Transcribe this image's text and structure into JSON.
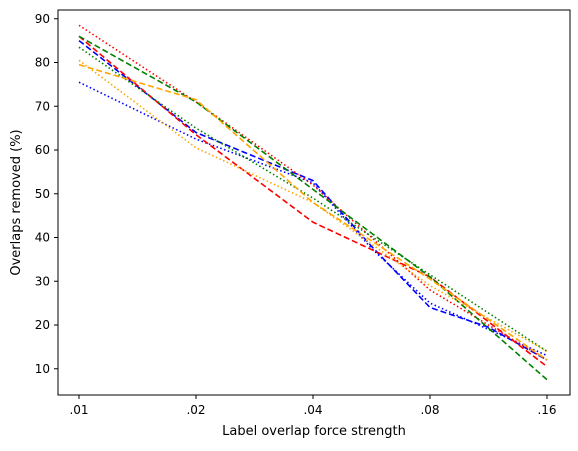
{
  "chart_data": {
    "type": "line",
    "title": "",
    "xlabel": "Label overlap force strength",
    "ylabel": "Overlaps removed (%)",
    "x_scale": "log2",
    "categories": [
      ".01",
      ".02",
      ".04",
      ".08",
      ".16"
    ],
    "ylim": [
      4,
      92
    ],
    "yticks": [
      10,
      20,
      30,
      40,
      50,
      60,
      70,
      80,
      90
    ],
    "grid": false,
    "legend": "none",
    "series": [
      {
        "color": "#0000ff",
        "dash": "dashed",
        "x": [
          0,
          1,
          2,
          2.5,
          3,
          3.5,
          4
        ],
        "values": [
          85.0,
          64.0,
          53.0,
          38.0,
          24.0,
          19.5,
          12.0
        ]
      },
      {
        "color": "#0000ff",
        "dash": "dotted",
        "x": [
          0,
          1,
          2,
          2.5,
          3,
          3.5,
          4
        ],
        "values": [
          75.5,
          62.5,
          52.5,
          37.5,
          25.0,
          19.0,
          13.0
        ]
      },
      {
        "color": "#ff0000",
        "dash": "dashed",
        "x": [
          0,
          1,
          2,
          3,
          4
        ],
        "values": [
          86.0,
          63.5,
          43.5,
          31.0,
          10.5
        ]
      },
      {
        "color": "#ff0000",
        "dash": "dotted",
        "x": [
          0,
          1,
          2,
          3,
          4
        ],
        "values": [
          88.5,
          71.0,
          52.0,
          28.0,
          12.0
        ]
      },
      {
        "color": "#008000",
        "dash": "dashed",
        "x": [
          0,
          1,
          2,
          3,
          4
        ],
        "values": [
          86.0,
          71.0,
          51.0,
          31.0,
          7.5
        ]
      },
      {
        "color": "#008000",
        "dash": "dotted",
        "x": [
          0,
          1,
          2,
          3,
          4
        ],
        "values": [
          83.5,
          65.0,
          49.0,
          31.5,
          14.0
        ]
      },
      {
        "color": "#ffa500",
        "dash": "dashed",
        "x": [
          0,
          1,
          2,
          3,
          4
        ],
        "values": [
          79.5,
          71.5,
          48.0,
          30.5,
          12.0
        ]
      },
      {
        "color": "#ffa500",
        "dash": "dotted",
        "x": [
          0,
          1,
          2,
          3,
          4
        ],
        "values": [
          80.5,
          60.5,
          48.0,
          29.0,
          14.0
        ]
      }
    ]
  }
}
